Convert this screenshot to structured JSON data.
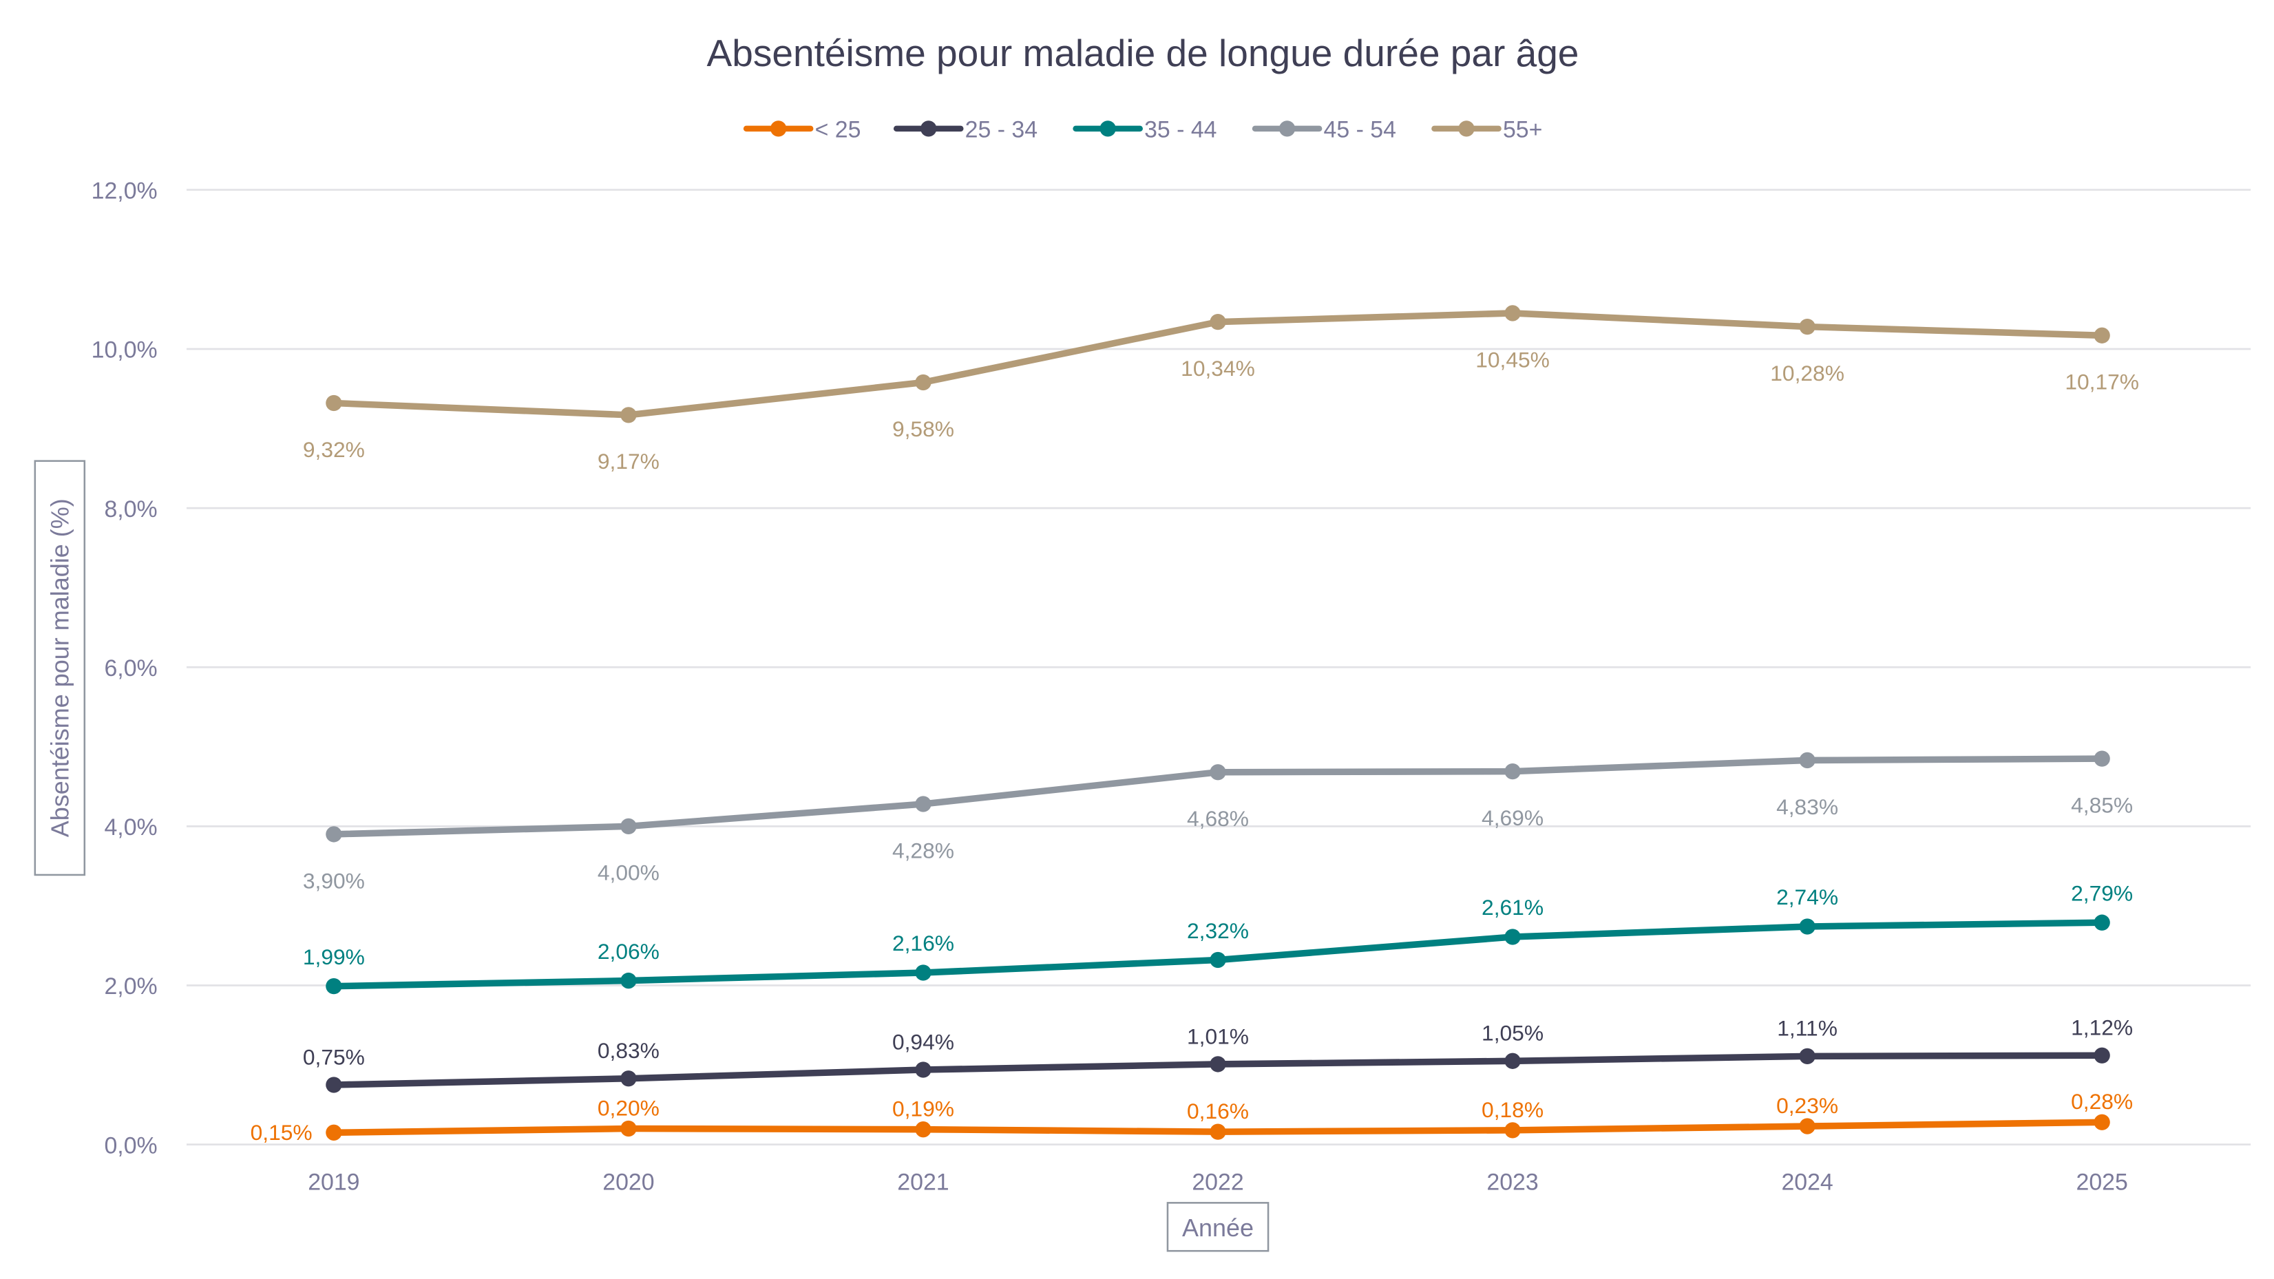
{
  "chart_data": {
    "type": "line",
    "title": "Absentéisme pour maladie de longue durée par âge",
    "xlabel": "Année",
    "ylabel": "Absentéisme pour maladie (%)",
    "categories": [
      "2019",
      "2020",
      "2021",
      "2022",
      "2023",
      "2024",
      "2025"
    ],
    "ylim": [
      0,
      12
    ],
    "yticks": [
      "0,0%",
      "2,0%",
      "4,0%",
      "6,0%",
      "8,0%",
      "10,0%",
      "12,0%"
    ],
    "grid": true,
    "legend_position": "top",
    "series": [
      {
        "name": "< 25",
        "color": "#EE7203",
        "values": [
          0.15,
          0.2,
          0.19,
          0.16,
          0.18,
          0.23,
          0.28
        ],
        "labels": [
          "0,15%",
          "0,20%",
          "0,19%",
          "0,16%",
          "0,18%",
          "0,23%",
          "0,28%"
        ]
      },
      {
        "name": "25 - 34",
        "color": "#3F3F55",
        "values": [
          0.75,
          0.83,
          0.94,
          1.01,
          1.05,
          1.11,
          1.12
        ],
        "labels": [
          "0,75%",
          "0,83%",
          "0,94%",
          "1,01%",
          "1,05%",
          "1,11%",
          "1,12%"
        ]
      },
      {
        "name": "35 - 44",
        "color": "#008080",
        "values": [
          1.99,
          2.06,
          2.16,
          2.32,
          2.61,
          2.74,
          2.79
        ],
        "labels": [
          "1,99%",
          "2,06%",
          "2,16%",
          "2,32%",
          "2,61%",
          "2,74%",
          "2,79%"
        ]
      },
      {
        "name": "45 - 54",
        "color": "#9097A0",
        "values": [
          3.9,
          4.0,
          4.28,
          4.68,
          4.69,
          4.83,
          4.85
        ],
        "labels": [
          "3,90%",
          "4,00%",
          "4,28%",
          "4,68%",
          "4,69%",
          "4,83%",
          "4,85%"
        ]
      },
      {
        "name": "55+",
        "color": "#B39B77",
        "values": [
          9.32,
          9.17,
          9.58,
          10.34,
          10.45,
          10.28,
          10.17
        ],
        "labels": [
          "9,32%",
          "9,17%",
          "9,58%",
          "10,34%",
          "10,45%",
          "10,28%",
          "10,17%"
        ]
      }
    ],
    "colors": {
      "axis_text": "#7B7A9A",
      "title": "#3F3F55",
      "grid": "#E2E2E6"
    }
  }
}
